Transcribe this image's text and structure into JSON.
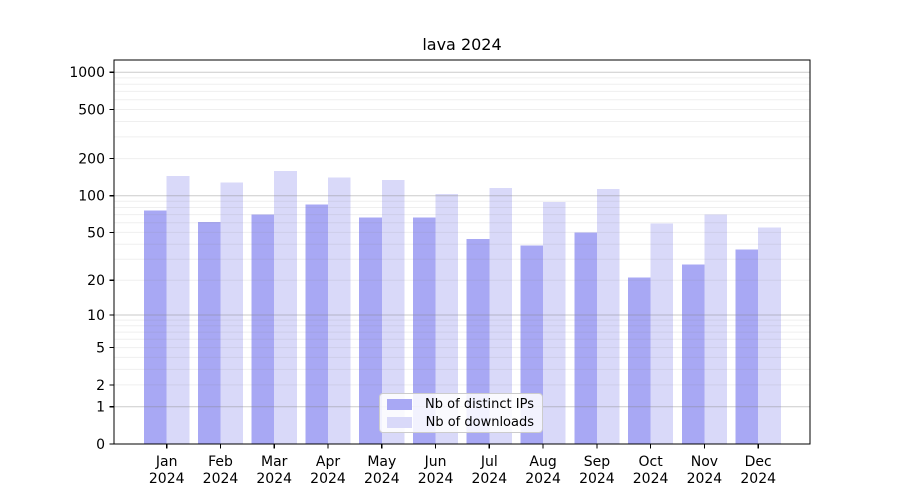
{
  "chart_data": {
    "type": "bar",
    "title": "lava 2024",
    "categories": [
      "Jan 2024",
      "Feb 2024",
      "Mar 2024",
      "Apr 2024",
      "May 2024",
      "Jun 2024",
      "Jul 2024",
      "Aug 2024",
      "Sep 2024",
      "Oct 2024",
      "Nov 2024",
      "Dec 2024"
    ],
    "series": [
      {
        "name": "Nb of distinct IPs",
        "color": "#a8a8f4",
        "values": [
          76,
          61,
          70,
          85,
          66,
          66,
          44,
          39,
          50,
          21,
          27,
          36
        ]
      },
      {
        "name": "Nb of downloads",
        "color": "#d9d9f9",
        "values": [
          145,
          128,
          159,
          140,
          134,
          103,
          115,
          89,
          113,
          59,
          70,
          55
        ]
      }
    ],
    "yscale": "log1p",
    "yticks": [
      0,
      1,
      2,
      5,
      10,
      20,
      50,
      100,
      200,
      500,
      1000
    ],
    "ylim": [
      0,
      1280
    ],
    "xlabel": "",
    "ylabel": "",
    "grid": true,
    "legend_position": "lower-center"
  },
  "colors": {
    "background": "#ffffff",
    "axis": "#000000",
    "grid": "#808080",
    "tick_label": "#000000",
    "legend_border": "#cccccc"
  }
}
